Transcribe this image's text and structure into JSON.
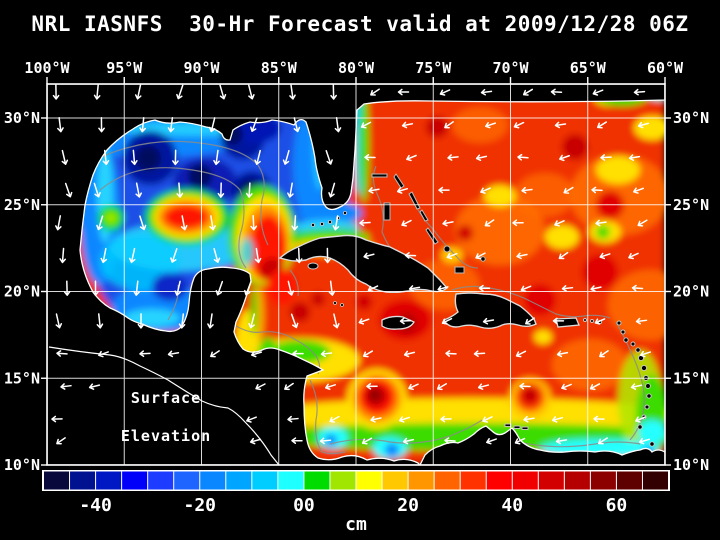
{
  "title": "NRL IASNFS  30-Hr Forecast valid at 2009/12/28 06Z",
  "map": {
    "top_axis_labels": [
      "100°W",
      "95°W",
      "90°W",
      "85°W",
      "80°W",
      "75°W",
      "70°W",
      "65°W",
      "60°W"
    ],
    "left_axis_labels": [
      "30°N",
      "25°N",
      "20°N",
      "15°N",
      "10°N"
    ],
    "right_axis_labels": [
      "30°N",
      "25°N",
      "20°N",
      "15°N",
      "10°N"
    ],
    "overlay_label": [
      "Surface",
      "Elevation"
    ]
  },
  "colorbar": {
    "units": "cm",
    "tick_labels": [
      "-40",
      "-20",
      "00",
      "20",
      "40",
      "60"
    ],
    "tick_values": [
      -40,
      -20,
      0,
      20,
      40,
      60
    ],
    "min_cm": -50,
    "max_cm": 70,
    "step_cm": 5,
    "cell_colors": [
      "#08083C",
      "#00128F",
      "#0018C3",
      "#0000FA",
      "#1E3CFF",
      "#1E64FF",
      "#0A87FF",
      "#00A5FF",
      "#00CDFF",
      "#1EFFFF",
      "#00DC00",
      "#A0E600",
      "#FFFF00",
      "#FFC800",
      "#FF9600",
      "#FF6400",
      "#FF3200",
      "#FF0000",
      "#F00000",
      "#D20000",
      "#B40000",
      "#8C0000",
      "#5F0000",
      "#320000"
    ]
  },
  "colors": {
    "background": "#000000",
    "frame": "#FFFFFF",
    "grid": "#FFFFFF",
    "land": "#000000",
    "coastline": "#FFFFFF",
    "contour": "#8C8C8C",
    "vector": "#FFFFFF",
    "sea_base": "#F03000"
  }
}
